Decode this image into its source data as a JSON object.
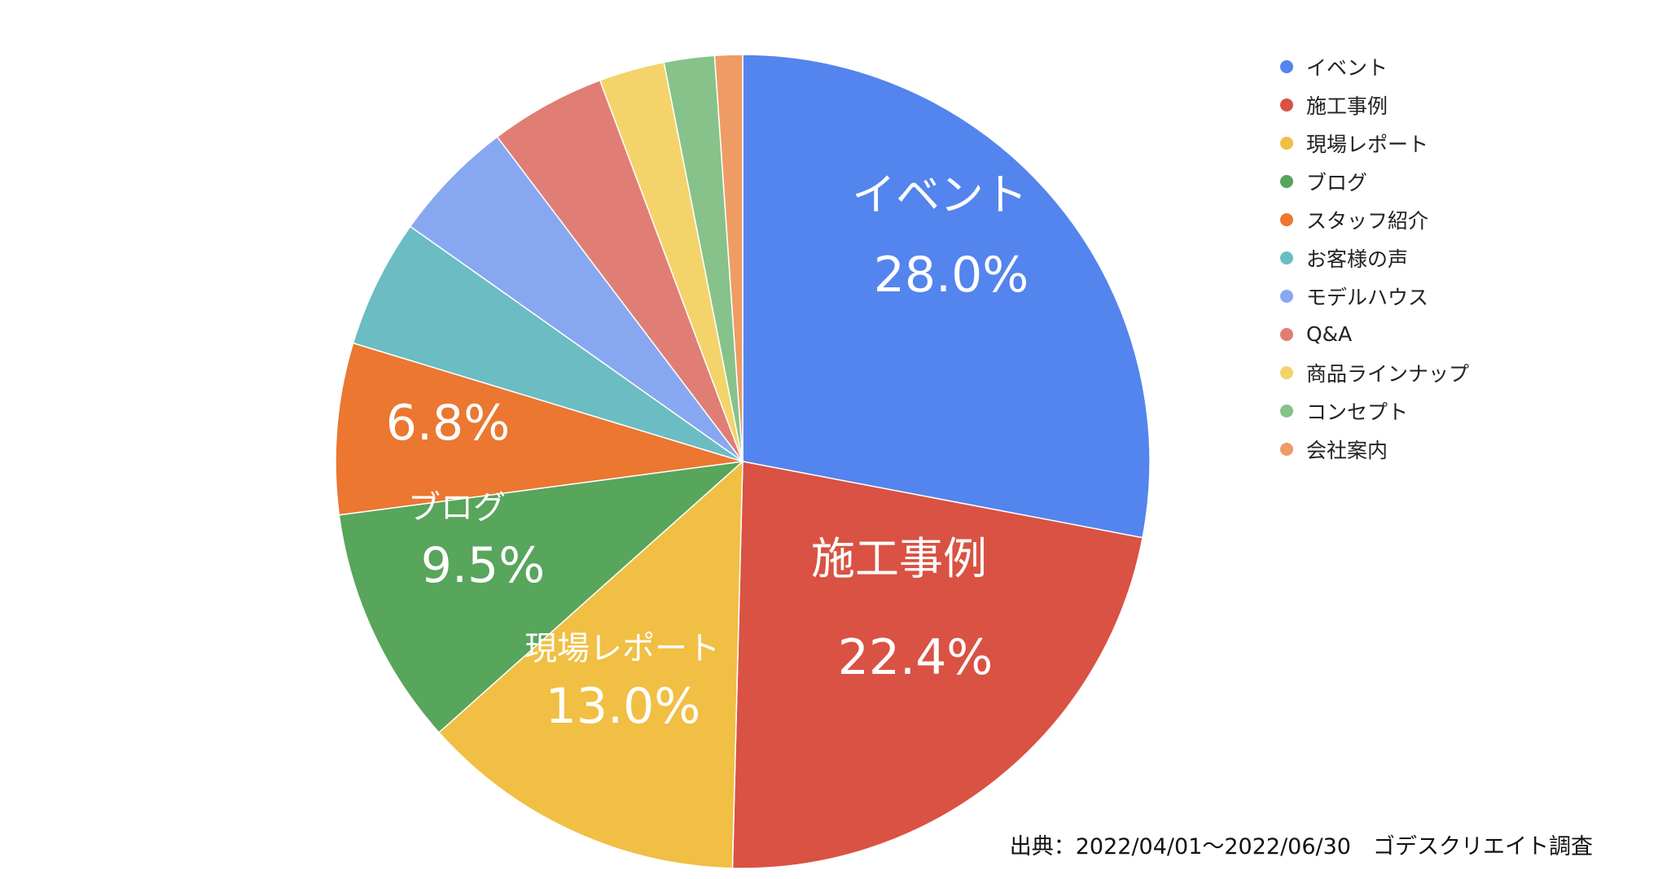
{
  "chart_data": {
    "type": "pie",
    "slices": [
      {
        "label": "イベント",
        "value": 28.0,
        "color": "#5484ED",
        "value_label": "28.0%",
        "show_name": true
      },
      {
        "label": "施工事例",
        "value": 22.4,
        "color": "#D95243",
        "value_label": "22.4%",
        "show_name": true
      },
      {
        "label": "現場レポート",
        "value": 13.0,
        "color": "#F0BF44",
        "value_label": "13.0%",
        "show_name": true
      },
      {
        "label": "ブログ",
        "value": 9.5,
        "color": "#58A55C",
        "value_label": "9.5%",
        "show_name": true
      },
      {
        "label": "スタッフ紹介",
        "value": 6.8,
        "color": "#EB7731",
        "value_label": "6.8%",
        "show_name": false
      },
      {
        "label": "お客様の声",
        "value": 5.1,
        "color": "#6BBCC3",
        "value_label": "",
        "show_name": false
      },
      {
        "label": "モデルハウス",
        "value": 4.9,
        "color": "#87A8F0",
        "value_label": "",
        "show_name": false
      },
      {
        "label": "Q&A",
        "value": 4.6,
        "color": "#E07E75",
        "value_label": "",
        "show_name": false
      },
      {
        "label": "商品ラインナップ",
        "value": 2.6,
        "color": "#F4D36A",
        "value_label": "",
        "show_name": false
      },
      {
        "label": "コンセプト",
        "value": 2.0,
        "color": "#86C28A",
        "value_label": "",
        "show_name": false
      },
      {
        "label": "会社案内",
        "value": 1.1,
        "color": "#EE9C63",
        "value_label": "",
        "show_name": false
      }
    ],
    "legend": "right",
    "start_angle": "12 o'clock",
    "direction": "clockwise"
  },
  "source_note": "出典：2022/04/01〜2022/06/30　ゴデスクリエイト調査"
}
